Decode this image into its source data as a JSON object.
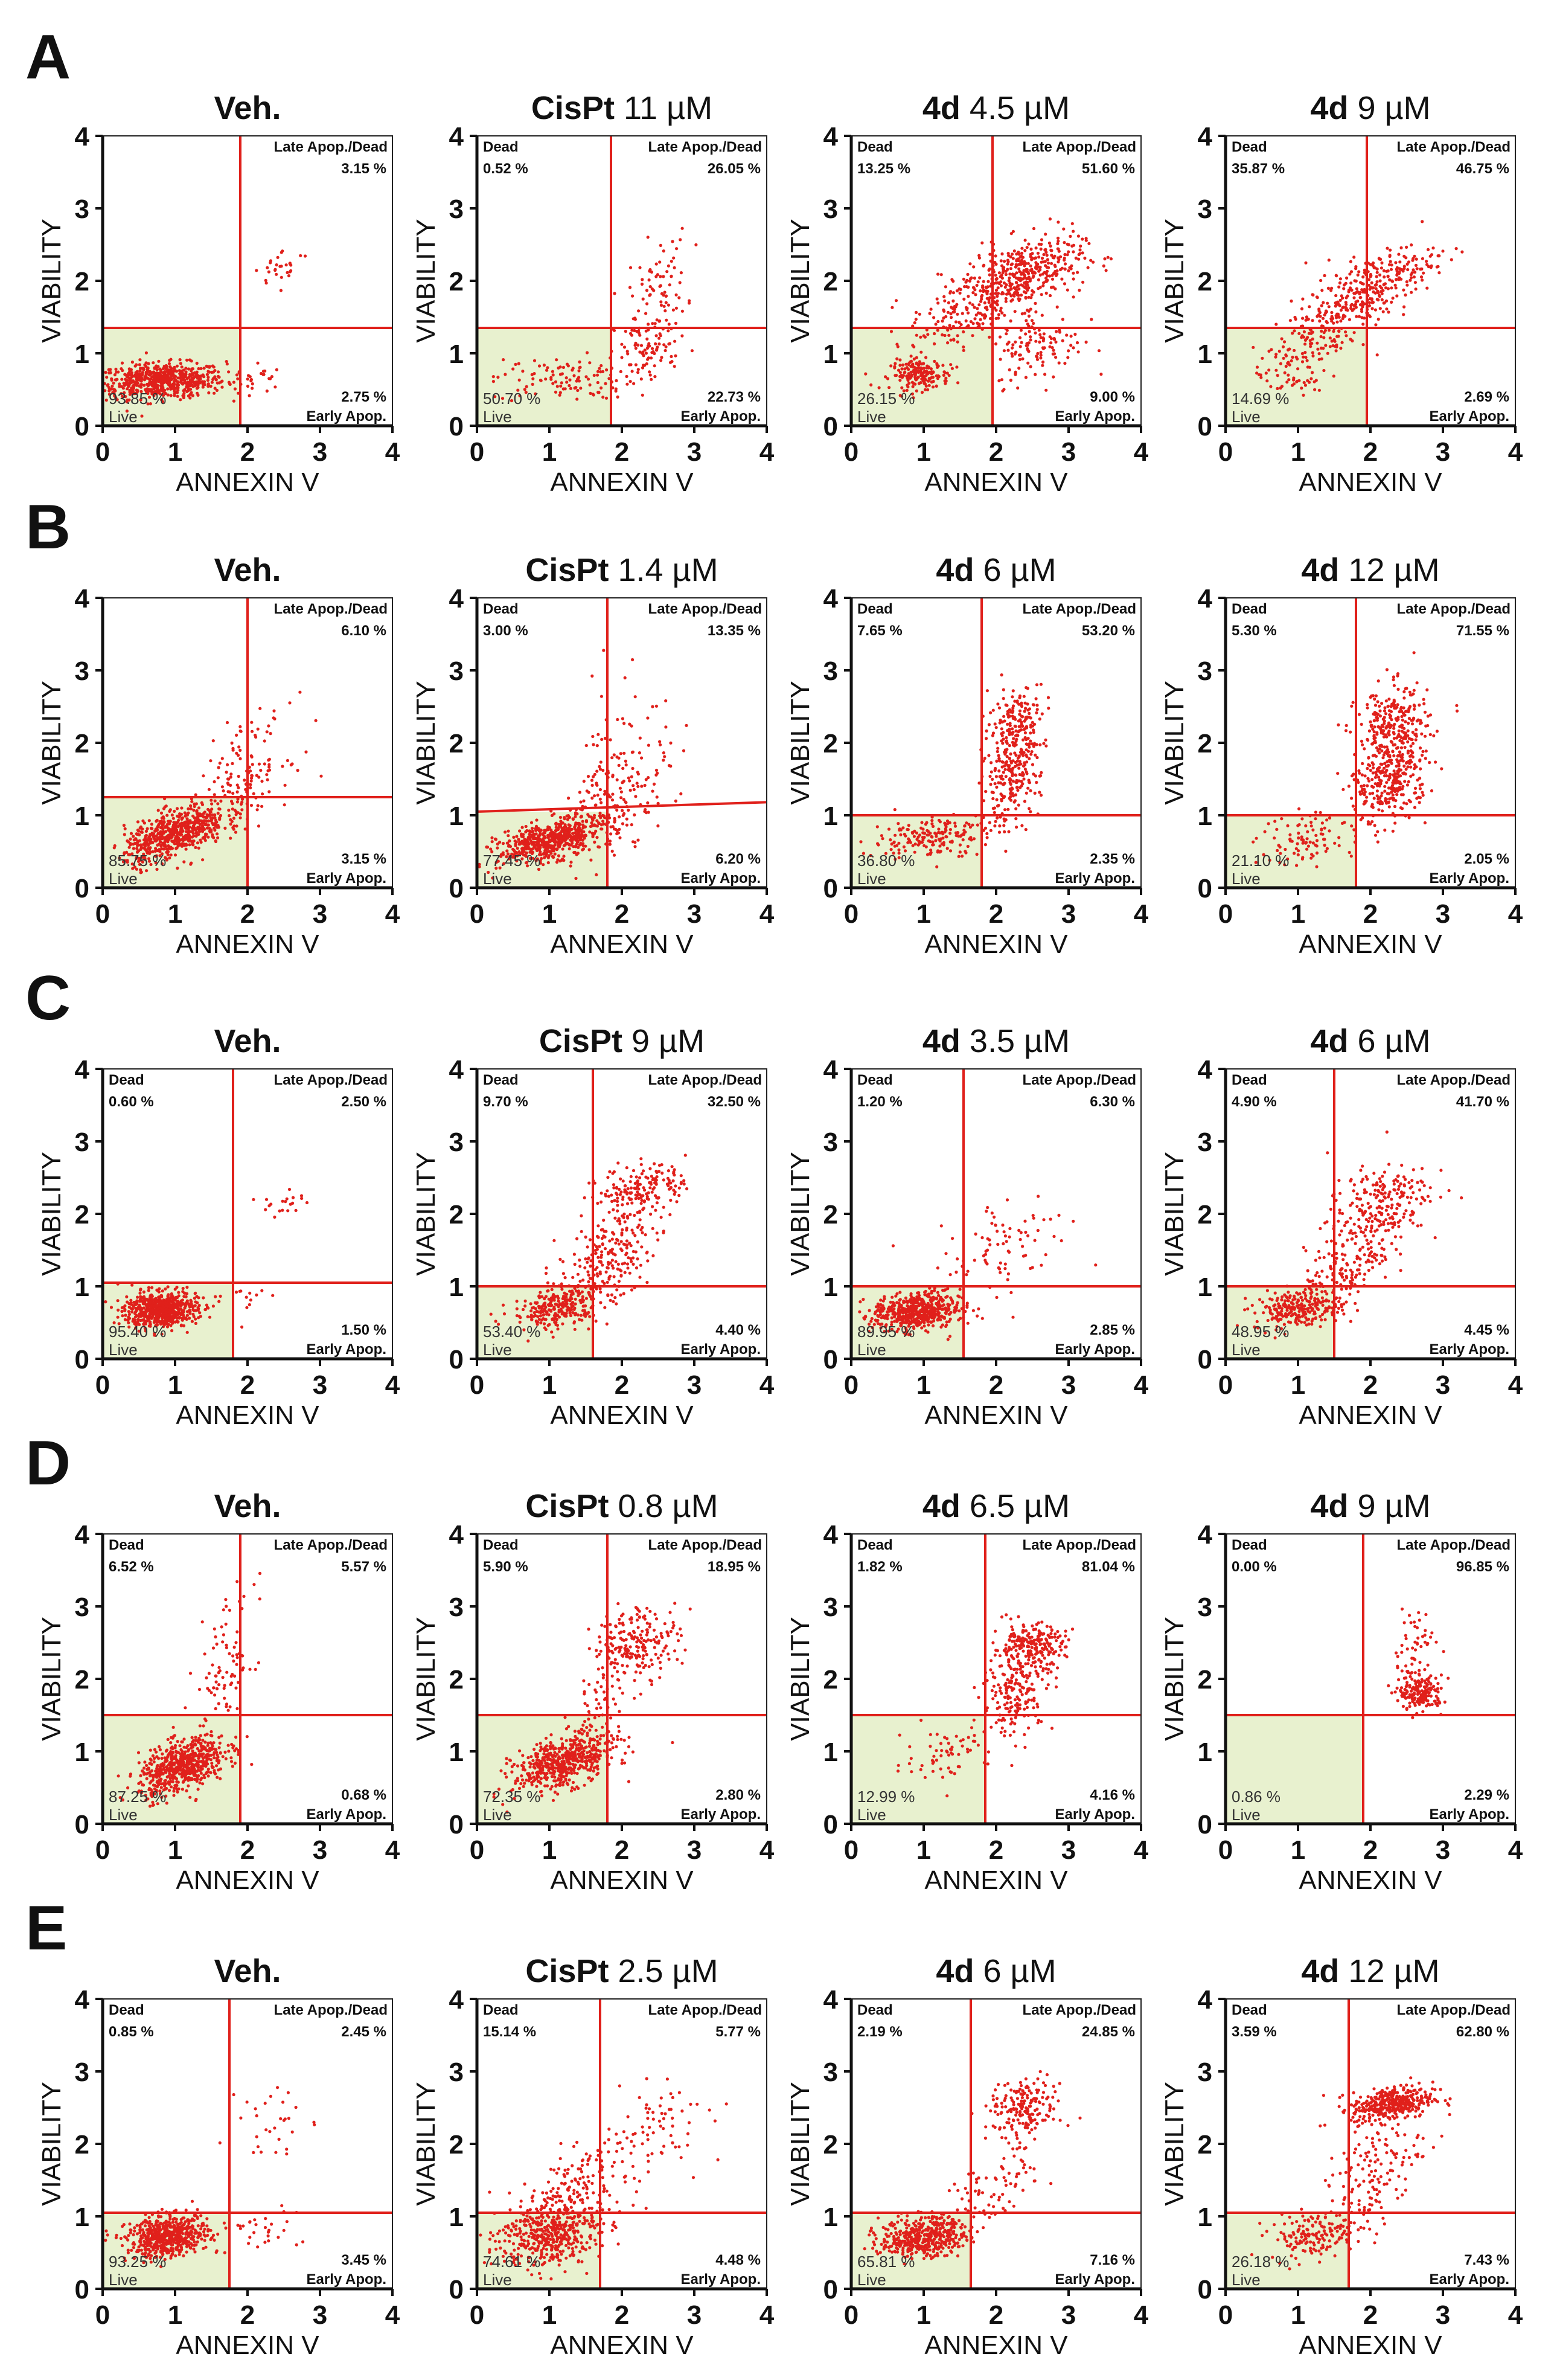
{
  "figure": {
    "axis_ticks": [
      "0",
      "1",
      "2",
      "3",
      "4"
    ],
    "labels": {
      "live": "Live",
      "early": "Early Apop.",
      "late": "Late Apop./Dead",
      "dead": "Dead"
    },
    "colors": {
      "dot": "#e0201b",
      "line": "#e0201b",
      "live_fill": "#e8f1cf",
      "text": "#111111"
    }
  },
  "chart_data": [
    {
      "panel": "A",
      "row": 0,
      "col": 0,
      "type": "scatter",
      "title_bold": "Veh.",
      "title_rest": "",
      "xlabel": "ANNEXIN V",
      "ylabel": "VIABILITY",
      "xlim": [
        0,
        4
      ],
      "ylim": [
        0,
        4
      ],
      "gate_x": 1.9,
      "gate_y": 1.35,
      "gate_y_right": 1.35,
      "q_live": "93.85 %",
      "q_early": "2.75 %",
      "q_late": "3.15 %",
      "q_dead": "",
      "clusters": [
        {
          "n": 650,
          "cx": 0.8,
          "cy": 0.62,
          "sx": 0.45,
          "sy": 0.12,
          "rho": 0.1
        },
        {
          "n": 28,
          "cx": 2.5,
          "cy": 2.2,
          "sx": 0.2,
          "sy": 0.12,
          "rho": 0.3
        },
        {
          "n": 25,
          "cx": 2.0,
          "cy": 0.65,
          "sx": 0.25,
          "sy": 0.12,
          "rho": 0
        }
      ]
    },
    {
      "panel": "A",
      "row": 0,
      "col": 1,
      "type": "scatter",
      "title_bold": "CisPt",
      "title_rest": "11 µM",
      "xlabel": "ANNEXIN V",
      "ylabel": "VIABILITY",
      "xlim": [
        0,
        4
      ],
      "ylim": [
        0,
        4
      ],
      "gate_x": 1.85,
      "gate_y": 1.35,
      "gate_y_right": 1.35,
      "q_live": "50.70 %",
      "q_early": "22.73 %",
      "q_late": "26.05 %",
      "q_dead": "0.52 %",
      "clusters": [
        {
          "n": 120,
          "cx": 1.2,
          "cy": 0.65,
          "sx": 0.5,
          "sy": 0.15,
          "rho": 0.1
        },
        {
          "n": 90,
          "cx": 2.4,
          "cy": 1.1,
          "sx": 0.25,
          "sy": 0.3,
          "rho": 0.3
        },
        {
          "n": 70,
          "cx": 2.5,
          "cy": 1.9,
          "sx": 0.2,
          "sy": 0.35,
          "rho": 0.2
        }
      ]
    },
    {
      "panel": "A",
      "row": 0,
      "col": 2,
      "type": "scatter",
      "title_bold": "4d",
      "title_rest": "4.5 µM",
      "xlabel": "ANNEXIN V",
      "ylabel": "VIABILITY",
      "xlim": [
        0,
        4
      ],
      "ylim": [
        0,
        4
      ],
      "gate_x": 1.95,
      "gate_y": 1.35,
      "gate_y_right": 1.35,
      "q_live": "26.15 %",
      "q_early": "9.00 %",
      "q_late": "51.60 %",
      "q_dead": "13.25 %",
      "clusters": [
        {
          "n": 180,
          "cx": 0.95,
          "cy": 0.7,
          "sx": 0.2,
          "sy": 0.1,
          "rho": 0
        },
        {
          "n": 380,
          "cx": 2.4,
          "cy": 2.1,
          "sx": 0.4,
          "sy": 0.25,
          "rho": 0.4
        },
        {
          "n": 200,
          "cx": 1.6,
          "cy": 1.6,
          "sx": 0.4,
          "sy": 0.35,
          "rho": 0.5
        },
        {
          "n": 120,
          "cx": 2.6,
          "cy": 1.1,
          "sx": 0.3,
          "sy": 0.25,
          "rho": 0.2
        }
      ]
    },
    {
      "panel": "A",
      "row": 0,
      "col": 3,
      "type": "scatter",
      "title_bold": "4d",
      "title_rest": "9 µM",
      "xlabel": "ANNEXIN V",
      "ylabel": "VIABILITY",
      "xlim": [
        0,
        4
      ],
      "ylim": [
        0,
        4
      ],
      "gate_x": 1.95,
      "gate_y": 1.35,
      "gate_y_right": 1.35,
      "q_live": "14.69 %",
      "q_early": "2.69 %",
      "q_late": "46.75 %",
      "q_dead": "35.87 %",
      "clusters": [
        {
          "n": 300,
          "cx": 2.0,
          "cy": 1.9,
          "sx": 0.45,
          "sy": 0.3,
          "rho": 0.7
        },
        {
          "n": 120,
          "cx": 1.3,
          "cy": 1.3,
          "sx": 0.35,
          "sy": 0.3,
          "rho": 0.5
        },
        {
          "n": 60,
          "cx": 0.9,
          "cy": 0.75,
          "sx": 0.25,
          "sy": 0.2,
          "rho": 0.2
        }
      ]
    },
    {
      "panel": "B",
      "row": 1,
      "col": 0,
      "type": "scatter",
      "title_bold": "Veh.",
      "title_rest": "",
      "xlabel": "ANNEXIN V",
      "ylabel": "VIABILITY",
      "xlim": [
        0,
        4
      ],
      "ylim": [
        0,
        4
      ],
      "gate_x": 2.0,
      "gate_y": 1.25,
      "gate_y_right": 1.25,
      "q_live": "85.75 %",
      "q_early": "3.15 %",
      "q_late": "6.10 %",
      "q_dead": "",
      "clusters": [
        {
          "n": 600,
          "cx": 1.0,
          "cy": 0.75,
          "sx": 0.35,
          "sy": 0.2,
          "rho": 0.6
        },
        {
          "n": 150,
          "cx": 1.9,
          "cy": 1.5,
          "sx": 0.35,
          "sy": 0.4,
          "rho": 0.5
        }
      ]
    },
    {
      "panel": "B",
      "row": 1,
      "col": 1,
      "type": "scatter",
      "title_bold": "CisPt",
      "title_rest": "1.4 µM",
      "xlabel": "ANNEXIN V",
      "ylabel": "VIABILITY",
      "xlim": [
        0,
        4
      ],
      "ylim": [
        0,
        4
      ],
      "gate_x": 1.8,
      "gate_y": 1.05,
      "gate_y_right": 1.18,
      "q_live": "77.45 %",
      "q_early": "6.20 %",
      "q_late": "13.35 %",
      "q_dead": "3.00 %",
      "clusters": [
        {
          "n": 550,
          "cx": 1.0,
          "cy": 0.65,
          "sx": 0.35,
          "sy": 0.15,
          "rho": 0.5
        },
        {
          "n": 180,
          "cx": 1.9,
          "cy": 1.2,
          "sx": 0.4,
          "sy": 0.4,
          "rho": 0.6
        },
        {
          "n": 40,
          "cx": 2.0,
          "cy": 2.2,
          "sx": 0.3,
          "sy": 0.5,
          "rho": 0.2
        }
      ]
    },
    {
      "panel": "B",
      "row": 1,
      "col": 2,
      "type": "scatter",
      "title_bold": "4d",
      "title_rest": "6 µM",
      "xlabel": "ANNEXIN V",
      "ylabel": "VIABILITY",
      "xlim": [
        0,
        4
      ],
      "ylim": [
        0,
        4
      ],
      "gate_x": 1.8,
      "gate_y": 1.0,
      "gate_y_right": 1.0,
      "q_live": "36.80 %",
      "q_early": "2.35 %",
      "q_late": "53.20 %",
      "q_dead": "7.65 %",
      "clusters": [
        {
          "n": 180,
          "cx": 1.1,
          "cy": 0.7,
          "sx": 0.4,
          "sy": 0.15,
          "rho": 0.3
        },
        {
          "n": 220,
          "cx": 2.2,
          "cy": 1.5,
          "sx": 0.2,
          "sy": 0.3,
          "rho": 0.2
        },
        {
          "n": 160,
          "cx": 2.3,
          "cy": 2.3,
          "sx": 0.2,
          "sy": 0.25,
          "rho": 0.2
        }
      ]
    },
    {
      "panel": "B",
      "row": 1,
      "col": 3,
      "type": "scatter",
      "title_bold": "4d",
      "title_rest": "12 µM",
      "xlabel": "ANNEXIN V",
      "ylabel": "VIABILITY",
      "xlim": [
        0,
        4
      ],
      "ylim": [
        0,
        4
      ],
      "gate_x": 1.8,
      "gate_y": 1.0,
      "gate_y_right": 1.0,
      "q_live": "21.10 %",
      "q_early": "2.05 %",
      "q_late": "71.55 %",
      "q_dead": "5.30 %",
      "clusters": [
        {
          "n": 300,
          "cx": 2.3,
          "cy": 1.5,
          "sx": 0.25,
          "sy": 0.3,
          "rho": 0.2
        },
        {
          "n": 260,
          "cx": 2.3,
          "cy": 2.2,
          "sx": 0.25,
          "sy": 0.3,
          "rho": 0.2
        },
        {
          "n": 100,
          "cx": 1.2,
          "cy": 0.7,
          "sx": 0.4,
          "sy": 0.2,
          "rho": 0.3
        }
      ]
    },
    {
      "panel": "C",
      "row": 2,
      "col": 0,
      "type": "scatter",
      "title_bold": "Veh.",
      "title_rest": "",
      "xlabel": "ANNEXIN V",
      "ylabel": "VIABILITY",
      "xlim": [
        0,
        4
      ],
      "ylim": [
        0,
        4
      ],
      "gate_x": 1.8,
      "gate_y": 1.05,
      "gate_y_right": 1.05,
      "q_live": "95.40 %",
      "q_early": "1.50 %",
      "q_late": "2.50 %",
      "q_dead": "0.60 %",
      "clusters": [
        {
          "n": 650,
          "cx": 0.8,
          "cy": 0.68,
          "sx": 0.25,
          "sy": 0.12,
          "rho": 0.1
        },
        {
          "n": 20,
          "cx": 2.5,
          "cy": 2.15,
          "sx": 0.18,
          "sy": 0.08,
          "rho": 0
        },
        {
          "n": 15,
          "cx": 2.0,
          "cy": 0.8,
          "sx": 0.2,
          "sy": 0.15,
          "rho": 0
        }
      ]
    },
    {
      "panel": "C",
      "row": 2,
      "col": 1,
      "type": "scatter",
      "title_bold": "CisPt",
      "title_rest": "9 µM",
      "xlabel": "ANNEXIN V",
      "ylabel": "VIABILITY",
      "xlim": [
        0,
        4
      ],
      "ylim": [
        0,
        4
      ],
      "gate_x": 1.6,
      "gate_y": 1.0,
      "gate_y_right": 1.0,
      "q_live": "53.40 %",
      "q_early": "4.40 %",
      "q_late": "32.50 %",
      "q_dead": "9.70 %",
      "clusters": [
        {
          "n": 250,
          "cx": 1.1,
          "cy": 0.7,
          "sx": 0.3,
          "sy": 0.15,
          "rho": 0.3
        },
        {
          "n": 250,
          "cx": 1.8,
          "cy": 1.4,
          "sx": 0.35,
          "sy": 0.4,
          "rho": 0.6
        },
        {
          "n": 150,
          "cx": 2.3,
          "cy": 2.4,
          "sx": 0.3,
          "sy": 0.15,
          "rho": 0.2
        }
      ]
    },
    {
      "panel": "C",
      "row": 2,
      "col": 2,
      "type": "scatter",
      "title_bold": "4d",
      "title_rest": "3.5 µM",
      "xlabel": "ANNEXIN V",
      "ylabel": "VIABILITY",
      "xlim": [
        0,
        4
      ],
      "ylim": [
        0,
        4
      ],
      "gate_x": 1.55,
      "gate_y": 1.0,
      "gate_y_right": 1.0,
      "q_live": "89.95 %",
      "q_early": "2.85 %",
      "q_late": "6.30 %",
      "q_dead": "1.20 %",
      "clusters": [
        {
          "n": 550,
          "cx": 0.9,
          "cy": 0.65,
          "sx": 0.3,
          "sy": 0.13,
          "rho": 0.2
        },
        {
          "n": 90,
          "cx": 2.1,
          "cy": 1.5,
          "sx": 0.45,
          "sy": 0.45,
          "rho": 0.5
        }
      ]
    },
    {
      "panel": "C",
      "row": 2,
      "col": 3,
      "type": "scatter",
      "title_bold": "4d",
      "title_rest": "6 µM",
      "xlabel": "ANNEXIN V",
      "ylabel": "VIABILITY",
      "xlim": [
        0,
        4
      ],
      "ylim": [
        0,
        4
      ],
      "gate_x": 1.5,
      "gate_y": 1.0,
      "gate_y_right": 1.0,
      "q_live": "48.95 %",
      "q_early": "4.45 %",
      "q_late": "41.70 %",
      "q_dead": "4.90 %",
      "clusters": [
        {
          "n": 250,
          "cx": 1.0,
          "cy": 0.7,
          "sx": 0.3,
          "sy": 0.13,
          "rho": 0.2
        },
        {
          "n": 230,
          "cx": 2.1,
          "cy": 2.1,
          "sx": 0.35,
          "sy": 0.3,
          "rho": 0.4
        },
        {
          "n": 150,
          "cx": 1.7,
          "cy": 1.3,
          "sx": 0.3,
          "sy": 0.3,
          "rho": 0.5
        }
      ]
    },
    {
      "panel": "D",
      "row": 3,
      "col": 0,
      "type": "scatter",
      "title_bold": "Veh.",
      "title_rest": "",
      "xlabel": "ANNEXIN V",
      "ylabel": "VIABILITY",
      "xlim": [
        0,
        4
      ],
      "ylim": [
        0,
        4
      ],
      "gate_x": 1.9,
      "gate_y": 1.5,
      "gate_y_right": 1.5,
      "q_live": "87.25 %",
      "q_early": "0.68 %",
      "q_late": "5.57 %",
      "q_dead": "6.52 %",
      "clusters": [
        {
          "n": 600,
          "cx": 1.1,
          "cy": 0.8,
          "sx": 0.3,
          "sy": 0.2,
          "rho": 0.5
        },
        {
          "n": 90,
          "cx": 1.7,
          "cy": 2.1,
          "sx": 0.2,
          "sy": 0.5,
          "rho": 0.3
        }
      ]
    },
    {
      "panel": "D",
      "row": 3,
      "col": 1,
      "type": "scatter",
      "title_bold": "CisPt",
      "title_rest": "0.8 µM",
      "xlabel": "ANNEXIN V",
      "ylabel": "VIABILITY",
      "xlim": [
        0,
        4
      ],
      "ylim": [
        0,
        4
      ],
      "gate_x": 1.8,
      "gate_y": 1.5,
      "gate_y_right": 1.5,
      "q_live": "72.35 %",
      "q_early": "2.80 %",
      "q_late": "18.95 %",
      "q_dead": "5.90 %",
      "clusters": [
        {
          "n": 550,
          "cx": 1.2,
          "cy": 0.85,
          "sx": 0.35,
          "sy": 0.2,
          "rho": 0.5
        },
        {
          "n": 220,
          "cx": 2.2,
          "cy": 2.5,
          "sx": 0.3,
          "sy": 0.25,
          "rho": 0.2
        },
        {
          "n": 50,
          "cx": 1.7,
          "cy": 1.6,
          "sx": 0.2,
          "sy": 0.3,
          "rho": 0.3
        }
      ]
    },
    {
      "panel": "D",
      "row": 3,
      "col": 2,
      "type": "scatter",
      "title_bold": "4d",
      "title_rest": "6.5 µM",
      "xlabel": "ANNEXIN V",
      "ylabel": "VIABILITY",
      "xlim": [
        0,
        4
      ],
      "ylim": [
        0,
        4
      ],
      "gate_x": 1.85,
      "gate_y": 1.5,
      "gate_y_right": 1.5,
      "q_live": "12.99 %",
      "q_early": "4.16 %",
      "q_late": "81.04 %",
      "q_dead": "1.82 %",
      "clusters": [
        {
          "n": 230,
          "cx": 2.45,
          "cy": 2.45,
          "sx": 0.25,
          "sy": 0.15,
          "rho": 0.1
        },
        {
          "n": 180,
          "cx": 2.3,
          "cy": 1.8,
          "sx": 0.25,
          "sy": 0.3,
          "rho": 0.2
        },
        {
          "n": 60,
          "cx": 1.3,
          "cy": 1.0,
          "sx": 0.3,
          "sy": 0.2,
          "rho": 0.4
        }
      ]
    },
    {
      "panel": "D",
      "row": 3,
      "col": 3,
      "type": "scatter",
      "title_bold": "4d",
      "title_rest": "9 µM",
      "xlabel": "ANNEXIN V",
      "ylabel": "VIABILITY",
      "xlim": [
        0,
        4
      ],
      "ylim": [
        0,
        4
      ],
      "gate_x": 1.9,
      "gate_y": 1.5,
      "gate_y_right": 1.5,
      "q_live": "0.86 %",
      "q_early": "2.29 %",
      "q_late": "96.85 %",
      "q_dead": "0.00 %",
      "clusters": [
        {
          "n": 180,
          "cx": 2.7,
          "cy": 1.8,
          "sx": 0.15,
          "sy": 0.12,
          "rho": 0
        },
        {
          "n": 60,
          "cx": 2.6,
          "cy": 2.4,
          "sx": 0.15,
          "sy": 0.3,
          "rho": 0
        }
      ]
    },
    {
      "panel": "E",
      "row": 4,
      "col": 0,
      "type": "scatter",
      "title_bold": "Veh.",
      "title_rest": "",
      "xlabel": "ANNEXIN V",
      "ylabel": "VIABILITY",
      "xlim": [
        0,
        4
      ],
      "ylim": [
        0,
        4
      ],
      "gate_x": 1.75,
      "gate_y": 1.05,
      "gate_y_right": 1.05,
      "q_live": "93.25 %",
      "q_early": "3.45 %",
      "q_late": "2.45 %",
      "q_dead": "0.85 %",
      "clusters": [
        {
          "n": 600,
          "cx": 0.9,
          "cy": 0.72,
          "sx": 0.28,
          "sy": 0.14,
          "rho": 0.2
        },
        {
          "n": 30,
          "cx": 2.4,
          "cy": 2.3,
          "sx": 0.25,
          "sy": 0.3,
          "rho": 0
        },
        {
          "n": 30,
          "cx": 2.1,
          "cy": 0.8,
          "sx": 0.3,
          "sy": 0.15,
          "rho": 0
        }
      ]
    },
    {
      "panel": "E",
      "row": 4,
      "col": 1,
      "type": "scatter",
      "title_bold": "CisPt",
      "title_rest": "2.5 µM",
      "xlabel": "ANNEXIN V",
      "ylabel": "VIABILITY",
      "xlim": [
        0,
        4
      ],
      "ylim": [
        0,
        4
      ],
      "gate_x": 1.7,
      "gate_y": 1.05,
      "gate_y_right": 1.05,
      "q_live": "74.61 %",
      "q_early": "4.48 %",
      "q_late": "5.77 %",
      "q_dead": "15.14 %",
      "clusters": [
        {
          "n": 450,
          "cx": 1.0,
          "cy": 0.75,
          "sx": 0.35,
          "sy": 0.22,
          "rho": 0.2
        },
        {
          "n": 140,
          "cx": 1.3,
          "cy": 1.4,
          "sx": 0.35,
          "sy": 0.3,
          "rho": 0.5
        },
        {
          "n": 80,
          "cx": 2.4,
          "cy": 2.1,
          "sx": 0.4,
          "sy": 0.4,
          "rho": 0.5
        }
      ]
    },
    {
      "panel": "E",
      "row": 4,
      "col": 2,
      "type": "scatter",
      "title_bold": "4d",
      "title_rest": "6 µM",
      "xlabel": "ANNEXIN V",
      "ylabel": "VIABILITY",
      "xlim": [
        0,
        4
      ],
      "ylim": [
        0,
        4
      ],
      "gate_x": 1.65,
      "gate_y": 1.05,
      "gate_y_right": 1.05,
      "q_live": "65.81 %",
      "q_early": "7.16 %",
      "q_late": "24.85 %",
      "q_dead": "2.19 %",
      "clusters": [
        {
          "n": 450,
          "cx": 1.0,
          "cy": 0.72,
          "sx": 0.3,
          "sy": 0.14,
          "rho": 0.2
        },
        {
          "n": 180,
          "cx": 2.4,
          "cy": 2.5,
          "sx": 0.25,
          "sy": 0.2,
          "rho": 0.2
        },
        {
          "n": 80,
          "cx": 2.0,
          "cy": 1.4,
          "sx": 0.35,
          "sy": 0.35,
          "rho": 0.5
        }
      ]
    },
    {
      "panel": "E",
      "row": 4,
      "col": 3,
      "type": "scatter",
      "title_bold": "4d",
      "title_rest": "12 µM",
      "xlabel": "ANNEXIN V",
      "ylabel": "VIABILITY",
      "xlim": [
        0,
        4
      ],
      "ylim": [
        0,
        4
      ],
      "gate_x": 1.7,
      "gate_y": 1.05,
      "gate_y_right": 1.05,
      "q_live": "26.18 %",
      "q_early": "7.43 %",
      "q_late": "62.80 %",
      "q_dead": "3.59 %",
      "clusters": [
        {
          "n": 380,
          "cx": 2.3,
          "cy": 2.55,
          "sx": 0.28,
          "sy": 0.12,
          "rho": 0.3
        },
        {
          "n": 150,
          "cx": 1.2,
          "cy": 0.75,
          "sx": 0.3,
          "sy": 0.15,
          "rho": 0.2
        },
        {
          "n": 150,
          "cx": 2.0,
          "cy": 1.5,
          "sx": 0.35,
          "sy": 0.45,
          "rho": 0.6
        }
      ]
    }
  ]
}
